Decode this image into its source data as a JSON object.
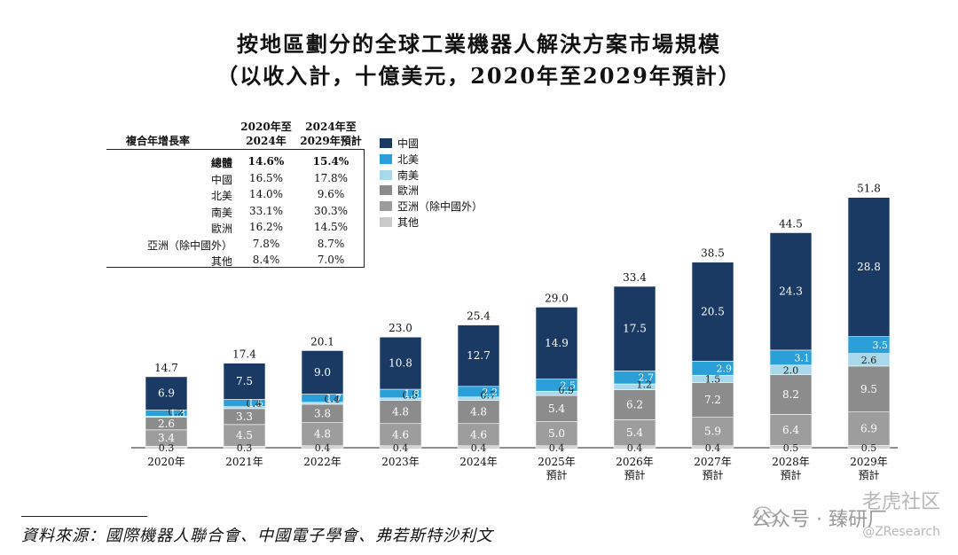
{
  "title_line1": "按地區劃分的全球工業機器人解決方案市場規模",
  "title_line2": "（以收入計，十億美元，2020年至2029年預計）",
  "cagr_table": {
    "header_label": "複合年增長率",
    "col1": [
      "2020年至",
      "2024年"
    ],
    "col2": [
      "2024年至",
      "2029年預計"
    ],
    "rows": [
      {
        "label": "總體",
        "v1": "14.6%",
        "v2": "15.4%",
        "bold": true
      },
      {
        "label": "中國",
        "v1": "16.5%",
        "v2": "17.8%"
      },
      {
        "label": "北美",
        "v1": "14.0%",
        "v2": "9.6%"
      },
      {
        "label": "南美",
        "v1": "33.1%",
        "v2": "30.3%"
      },
      {
        "label": "歐洲",
        "v1": "16.2%",
        "v2": "14.5%"
      },
      {
        "label": "亞洲（除中國外）",
        "v1": "7.8%",
        "v2": "8.7%"
      },
      {
        "label": "其他",
        "v1": "8.4%",
        "v2": "7.0%"
      }
    ]
  },
  "chart_data": {
    "type": "bar",
    "stacked": true,
    "categories": [
      "2020年",
      "2021年",
      "2022年",
      "2023年",
      "2024年",
      "2025年\n預計",
      "2026年\n預計",
      "2027年\n預計",
      "2028年\n預計",
      "2029年\n預計"
    ],
    "series": [
      {
        "name": "其他",
        "color": "#c9c9c9",
        "values": [
          0.3,
          0.3,
          0.4,
          0.4,
          0.4,
          0.4,
          0.4,
          0.4,
          0.5,
          0.5
        ]
      },
      {
        "name": "亞洲（除中國外）",
        "color": "#9d9d9d",
        "values": [
          3.4,
          4.5,
          4.8,
          4.6,
          4.6,
          5.0,
          5.4,
          5.9,
          6.4,
          6.9
        ]
      },
      {
        "name": "歐洲",
        "color": "#8c8c8c",
        "values": [
          2.6,
          3.3,
          3.8,
          4.8,
          4.8,
          5.4,
          6.2,
          7.2,
          8.2,
          9.5
        ]
      },
      {
        "name": "南美",
        "color": "#a8d8ea",
        "values": [
          0.2,
          0.4,
          0.4,
          0.5,
          0.7,
          0.9,
          1.2,
          1.5,
          2.0,
          2.6
        ]
      },
      {
        "name": "北美",
        "color": "#2a9fd8",
        "values": [
          1.3,
          1.5,
          1.7,
          1.8,
          2.2,
          2.5,
          2.7,
          2.9,
          3.1,
          3.5
        ]
      },
      {
        "name": "中國",
        "color": "#1a3a63",
        "values": [
          6.9,
          7.5,
          9.0,
          10.8,
          12.7,
          14.9,
          17.5,
          20.5,
          24.3,
          28.8
        ]
      }
    ],
    "totals": [
      14.7,
      17.4,
      20.1,
      23.0,
      25.4,
      29.0,
      33.4,
      38.5,
      44.5,
      51.8
    ],
    "legend_order": [
      "中國",
      "北美",
      "南美",
      "歐洲",
      "亞洲（除中國外）",
      "其他"
    ],
    "legend_position": "top-center",
    "grid": false
  },
  "source_text": "資料來源：國際機器人聯合會、中國電子學會、弗若斯特沙利文",
  "watermark": {
    "line1": "老虎社区",
    "line2": "公众号 · 臻研厂",
    "line3": "@ZResearch"
  }
}
